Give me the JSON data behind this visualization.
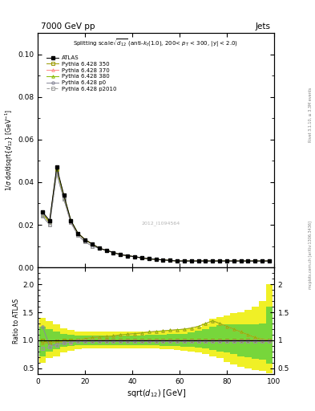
{
  "title_top": "7000 GeV pp",
  "title_right": "Jets",
  "xlabel": "sqrt($d_{12}$) [GeV]",
  "ylabel_main": "1/$\\sigma$ d$\\sigma$/dsqrt{$d_{12}$} [GeV$^{-1}$]",
  "ylabel_ratio": "Ratio to ATLAS",
  "xlim": [
    0,
    100
  ],
  "ylim_main": [
    0,
    0.11
  ],
  "ylim_ratio": [
    0.4,
    2.3
  ],
  "watermark": "2012_I1094564",
  "rivet_text": "Rivet 3.1.10, ≥ 3.3M events",
  "mcplots_text": "mcplots.cern.ch [arXiv:1306.3436]",
  "x_data": [
    2,
    5,
    8,
    11,
    14,
    17,
    20,
    23,
    26,
    29,
    32,
    35,
    38,
    41,
    44,
    47,
    50,
    53,
    56,
    59,
    62,
    65,
    68,
    71,
    74,
    77,
    80,
    83,
    86,
    89,
    92,
    95,
    98
  ],
  "atlas_y": [
    0.026,
    0.022,
    0.047,
    0.034,
    0.022,
    0.016,
    0.013,
    0.011,
    0.009,
    0.008,
    0.007,
    0.006,
    0.0055,
    0.005,
    0.0045,
    0.004,
    0.0038,
    0.0035,
    0.0033,
    0.003,
    0.003,
    0.003,
    0.003,
    0.003,
    0.003,
    0.003,
    0.003,
    0.003,
    0.003,
    0.003,
    0.003,
    0.003,
    0.003
  ],
  "p350_y": [
    0.026,
    0.021,
    0.046,
    0.034,
    0.022,
    0.016,
    0.013,
    0.011,
    0.009,
    0.008,
    0.007,
    0.006,
    0.0055,
    0.005,
    0.0045,
    0.004,
    0.0038,
    0.0035,
    0.0033,
    0.003,
    0.003,
    0.003,
    0.003,
    0.003,
    0.003,
    0.003,
    0.003,
    0.003,
    0.003,
    0.003,
    0.003,
    0.003,
    0.003
  ],
  "p370_y": [
    0.025,
    0.021,
    0.046,
    0.033,
    0.021,
    0.016,
    0.013,
    0.011,
    0.009,
    0.008,
    0.007,
    0.006,
    0.0055,
    0.005,
    0.0045,
    0.004,
    0.0038,
    0.0035,
    0.0033,
    0.003,
    0.003,
    0.003,
    0.003,
    0.003,
    0.003,
    0.003,
    0.003,
    0.003,
    0.003,
    0.003,
    0.003,
    0.003,
    0.003
  ],
  "p380_y": [
    0.025,
    0.021,
    0.046,
    0.033,
    0.022,
    0.016,
    0.013,
    0.011,
    0.009,
    0.008,
    0.007,
    0.006,
    0.0055,
    0.005,
    0.0045,
    0.004,
    0.0038,
    0.0035,
    0.0033,
    0.003,
    0.003,
    0.003,
    0.003,
    0.003,
    0.003,
    0.003,
    0.003,
    0.003,
    0.003,
    0.003,
    0.003,
    0.003,
    0.003
  ],
  "pp0_y": [
    0.024,
    0.02,
    0.044,
    0.032,
    0.021,
    0.015,
    0.012,
    0.01,
    0.009,
    0.008,
    0.007,
    0.006,
    0.0055,
    0.005,
    0.0045,
    0.004,
    0.0038,
    0.0035,
    0.0033,
    0.003,
    0.003,
    0.003,
    0.003,
    0.003,
    0.003,
    0.003,
    0.003,
    0.003,
    0.003,
    0.003,
    0.003,
    0.003,
    0.003
  ],
  "pp2010_y": [
    0.024,
    0.02,
    0.044,
    0.032,
    0.021,
    0.015,
    0.012,
    0.01,
    0.009,
    0.008,
    0.007,
    0.006,
    0.0055,
    0.005,
    0.0045,
    0.004,
    0.0038,
    0.0035,
    0.0033,
    0.003,
    0.003,
    0.003,
    0.003,
    0.003,
    0.003,
    0.003,
    0.003,
    0.003,
    0.003,
    0.003,
    0.003,
    0.003,
    0.003
  ],
  "ratio_p350": [
    1.0,
    0.95,
    0.98,
    1.0,
    1.0,
    1.0,
    1.0,
    1.0,
    1.0,
    1.0,
    1.0,
    1.0,
    1.0,
    1.0,
    1.0,
    1.0,
    1.0,
    1.0,
    1.0,
    1.0,
    1.0,
    1.0,
    1.0,
    1.0,
    1.0,
    1.0,
    1.0,
    1.0,
    1.0,
    1.0,
    1.0,
    1.0,
    1.0
  ],
  "ratio_p370": [
    0.96,
    0.95,
    0.98,
    0.97,
    0.96,
    1.0,
    1.03,
    1.05,
    1.06,
    1.07,
    1.08,
    1.1,
    1.11,
    1.12,
    1.13,
    1.15,
    1.16,
    1.17,
    1.18,
    1.19,
    1.2,
    1.22,
    1.25,
    1.3,
    1.35,
    1.3,
    1.25,
    1.2,
    1.15,
    1.1,
    1.05,
    1.02,
    1.0
  ],
  "ratio_p380": [
    0.96,
    0.95,
    0.98,
    0.97,
    1.0,
    1.0,
    1.03,
    1.05,
    1.06,
    1.07,
    1.08,
    1.1,
    1.11,
    1.12,
    1.13,
    1.15,
    1.16,
    1.17,
    1.18,
    1.19,
    1.2,
    1.22,
    1.25,
    1.3,
    1.35,
    1.3,
    1.25,
    1.2,
    1.15,
    1.1,
    1.05,
    1.02,
    1.0
  ],
  "ratio_pp0": [
    1.25,
    0.9,
    0.93,
    0.95,
    0.97,
    0.98,
    0.98,
    0.98,
    0.98,
    0.98,
    0.98,
    0.98,
    0.98,
    0.98,
    0.98,
    0.98,
    0.98,
    0.98,
    0.98,
    0.98,
    0.98,
    0.98,
    0.98,
    0.98,
    0.98,
    0.98,
    0.98,
    0.98,
    0.98,
    0.98,
    0.98,
    0.98,
    0.98
  ],
  "ratio_pp2010": [
    0.85,
    0.88,
    0.92,
    0.95,
    0.97,
    0.98,
    0.98,
    0.98,
    0.98,
    0.98,
    0.98,
    0.98,
    0.98,
    0.98,
    0.98,
    0.98,
    0.98,
    0.98,
    0.98,
    0.98,
    0.98,
    0.98,
    0.98,
    0.98,
    0.98,
    0.98,
    0.98,
    0.98,
    0.98,
    0.98,
    0.98,
    0.98,
    0.98
  ],
  "color_350": "#999900",
  "color_370": "#ff8888",
  "color_380": "#88bb00",
  "color_pp0": "#888899",
  "color_pp2010": "#999999",
  "band_yellow": "#eeee00",
  "band_green": "#44cc44",
  "yellow_upper": [
    1.4,
    1.35,
    1.28,
    1.22,
    1.18,
    1.16,
    1.15,
    1.15,
    1.15,
    1.15,
    1.15,
    1.15,
    1.15,
    1.15,
    1.15,
    1.16,
    1.16,
    1.17,
    1.18,
    1.19,
    1.2,
    1.22,
    1.25,
    1.3,
    1.38,
    1.42,
    1.45,
    1.48,
    1.5,
    1.55,
    1.6,
    1.7,
    2.0
  ],
  "yellow_lower": [
    0.6,
    0.68,
    0.72,
    0.78,
    0.82,
    0.84,
    0.85,
    0.85,
    0.85,
    0.85,
    0.85,
    0.85,
    0.85,
    0.85,
    0.85,
    0.85,
    0.85,
    0.84,
    0.84,
    0.83,
    0.82,
    0.8,
    0.78,
    0.75,
    0.72,
    0.68,
    0.62,
    0.57,
    0.53,
    0.5,
    0.47,
    0.45,
    0.42
  ],
  "green_upper": [
    1.25,
    1.2,
    1.15,
    1.12,
    1.1,
    1.09,
    1.09,
    1.09,
    1.09,
    1.09,
    1.09,
    1.09,
    1.09,
    1.09,
    1.09,
    1.1,
    1.1,
    1.1,
    1.11,
    1.11,
    1.12,
    1.14,
    1.17,
    1.2,
    1.25,
    1.27,
    1.28,
    1.28,
    1.28,
    1.28,
    1.28,
    1.3,
    1.6
  ],
  "green_lower": [
    0.72,
    0.8,
    0.84,
    0.88,
    0.9,
    0.91,
    0.91,
    0.91,
    0.91,
    0.91,
    0.91,
    0.91,
    0.91,
    0.91,
    0.91,
    0.91,
    0.91,
    0.9,
    0.9,
    0.9,
    0.89,
    0.88,
    0.87,
    0.85,
    0.83,
    0.8,
    0.78,
    0.75,
    0.72,
    0.7,
    0.67,
    0.65,
    0.58
  ]
}
